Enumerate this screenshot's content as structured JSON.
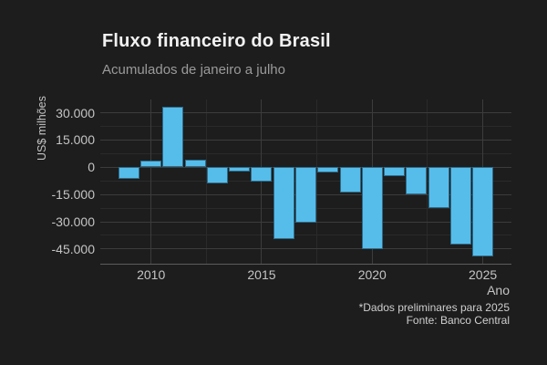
{
  "chart_data": {
    "type": "bar",
    "title": "Fluxo financeiro do Brasil",
    "subtitle": "Acumulados de janeiro a julho",
    "xlabel": "Ano",
    "ylabel": "US$ milhões",
    "caption_line1": "*Dados preliminares para 2025",
    "caption_line2": "Fonte: Banco Central",
    "x": [
      2009,
      2010,
      2011,
      2012,
      2013,
      2014,
      2015,
      2016,
      2017,
      2018,
      2019,
      2020,
      2021,
      2022,
      2023,
      2024,
      2025
    ],
    "values": [
      -6400,
      3500,
      33300,
      4100,
      -8700,
      -2600,
      -7900,
      -39300,
      -30300,
      -3100,
      -13800,
      -45300,
      -4800,
      -15100,
      -22500,
      -42800,
      -49000
    ],
    "units": "US$ milhões",
    "xlim": [
      2007.705,
      2026.295
    ],
    "ylim": [
      -53100,
      37300
    ],
    "y_major_ticks": [
      30000,
      15000,
      0,
      -15000,
      -30000,
      -45000
    ],
    "y_tick_labels": [
      "30.000",
      "15.000",
      "0",
      "-15.000",
      "-30.000",
      "-45.000"
    ],
    "y_minor_ticks": [
      22500,
      7500,
      -7500,
      -22500,
      -37500
    ],
    "x_major_ticks": [
      2010,
      2015,
      2020,
      2025
    ],
    "x_tick_labels": [
      "2010",
      "2015",
      "2020",
      "2025"
    ],
    "x_minor_ticks": [
      2012.5,
      2017.5,
      2022.5
    ],
    "grid": true,
    "legend": "none",
    "colors": {
      "background": "#1d1d1d",
      "bar": "#56bdea",
      "bar_edge": "rgba(12,40,58,0.55)",
      "grid_major": "#3c3c3c",
      "grid_minor": "#2a2a2a",
      "axis_line": "#5c5c5c",
      "title": "#f2f2f2",
      "subtitle": "#9a9a9a",
      "tick_text": "#c4c4c4",
      "caption_text": "#cfcfcf"
    }
  }
}
